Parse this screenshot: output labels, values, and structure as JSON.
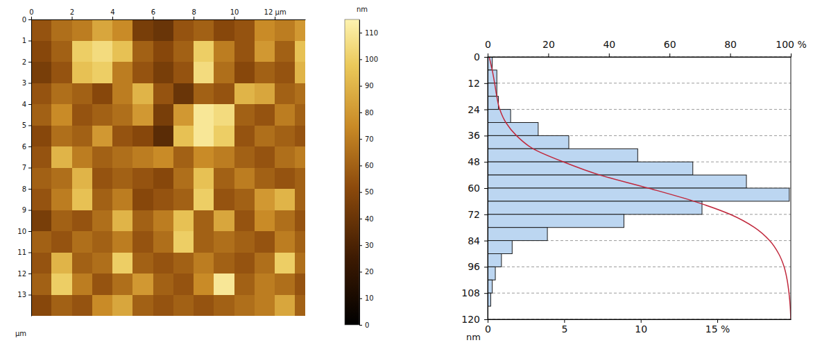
{
  "chart_data": [
    {
      "type": "heatmap",
      "xlim": [
        0,
        13.5
      ],
      "xticks": [
        0,
        2,
        4,
        6,
        8,
        10,
        {
          "value": 12,
          "label": "12 µm"
        }
      ],
      "ylim": [
        0,
        14
      ],
      "yticks": [
        0,
        1,
        2,
        3,
        4,
        5,
        6,
        7,
        8,
        9,
        10,
        11,
        12,
        13
      ],
      "y_label": "µm",
      "x_bins": [
        0,
        1,
        2,
        3,
        4,
        5,
        6,
        7,
        8,
        9,
        10,
        11,
        12,
        13,
        14
      ],
      "y_bins": [
        0,
        1,
        2,
        3,
        4,
        5,
        6,
        7,
        8,
        9,
        10,
        11,
        12,
        13,
        14
      ],
      "cells": [
        [
          55,
          65,
          70,
          85,
          75,
          45,
          40,
          55,
          60,
          50,
          55,
          75,
          70,
          80
        ],
        [
          50,
          60,
          100,
          105,
          95,
          60,
          50,
          60,
          100,
          70,
          55,
          80,
          60,
          95
        ],
        [
          45,
          55,
          95,
          100,
          70,
          55,
          45,
          55,
          105,
          65,
          50,
          60,
          55,
          90
        ],
        [
          55,
          65,
          60,
          50,
          70,
          90,
          55,
          40,
          60,
          55,
          90,
          85,
          60,
          65
        ],
        [
          60,
          75,
          55,
          60,
          65,
          80,
          45,
          80,
          110,
          105,
          60,
          55,
          70,
          60
        ],
        [
          50,
          65,
          60,
          80,
          55,
          50,
          35,
          95,
          110,
          100,
          55,
          65,
          60,
          55
        ],
        [
          55,
          90,
          70,
          60,
          65,
          70,
          75,
          60,
          75,
          70,
          60,
          55,
          65,
          70
        ],
        [
          60,
          65,
          90,
          55,
          60,
          55,
          50,
          65,
          95,
          60,
          70,
          60,
          55,
          60
        ],
        [
          55,
          70,
          95,
          60,
          70,
          50,
          55,
          60,
          100,
          55,
          60,
          80,
          90,
          60
        ],
        [
          45,
          60,
          55,
          65,
          90,
          60,
          70,
          95,
          60,
          85,
          55,
          75,
          65,
          55
        ],
        [
          60,
          55,
          65,
          60,
          70,
          55,
          65,
          100,
          60,
          65,
          60,
          55,
          70,
          60
        ],
        [
          55,
          90,
          60,
          65,
          100,
          60,
          55,
          60,
          70,
          60,
          55,
          65,
          100,
          65
        ],
        [
          60,
          100,
          70,
          55,
          65,
          80,
          60,
          55,
          75,
          110,
          60,
          70,
          65,
          55
        ],
        [
          50,
          60,
          55,
          75,
          85,
          60,
          55,
          60,
          55,
          60,
          65,
          70,
          85,
          60
        ]
      ],
      "colorbar": {
        "range": [
          0,
          115
        ],
        "ticks": [
          0,
          10,
          20,
          30,
          40,
          50,
          60,
          70,
          80,
          90,
          100,
          110
        ],
        "label": "nm"
      }
    },
    {
      "type": "histogram",
      "orientation": "horizontal",
      "bins": [
        0,
        6,
        12,
        18,
        24,
        30,
        36,
        42,
        48,
        54,
        60,
        66,
        72,
        78,
        84,
        90,
        96,
        102,
        108,
        114,
        120
      ],
      "values": [
        0.3,
        0.6,
        0.6,
        0.7,
        1.5,
        3.3,
        5.3,
        9.8,
        13.4,
        16.9,
        19.7,
        14.0,
        8.9,
        3.9,
        1.6,
        0.9,
        0.5,
        0.3,
        0.2,
        0
      ],
      "color": "#bcd6f1",
      "xlim": [
        0,
        19.8
      ],
      "xticks": [
        0,
        5,
        10,
        {
          "value": 15,
          "label": "15 %"
        }
      ],
      "x2lim": [
        0,
        100
      ],
      "x2ticks": [
        0,
        20,
        40,
        60,
        80,
        {
          "value": 100,
          "label": "100 %"
        }
      ],
      "ylim": [
        0,
        120
      ],
      "yticks": [
        0,
        12,
        24,
        36,
        48,
        60,
        72,
        84,
        96,
        108,
        120
      ],
      "y_label": "nm",
      "grid": true,
      "cumulative": {
        "values": [
          0.5,
          1.5,
          2.3,
          3,
          4,
          6,
          9.5,
          15,
          25,
          37,
          53,
          68,
          80,
          88,
          93,
          96,
          97.8,
          98.8,
          99.4,
          99.8,
          100
        ],
        "color": "#c0283c",
        "axis": "x2"
      }
    }
  ]
}
